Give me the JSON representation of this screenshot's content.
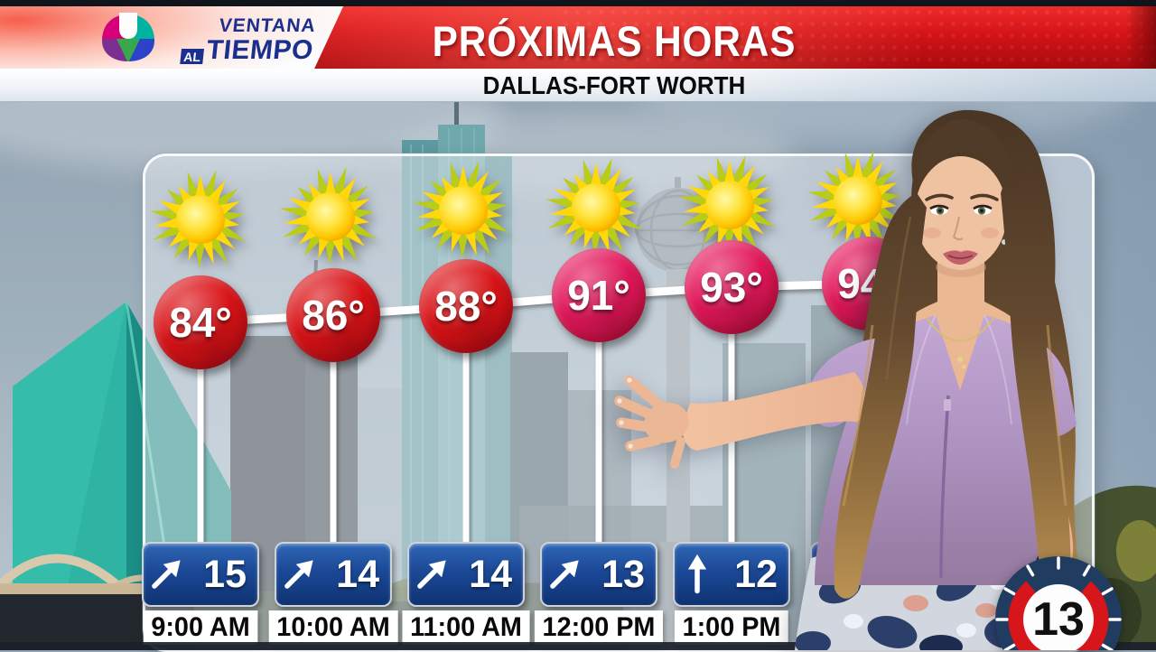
{
  "branding": {
    "network": "univision-logo",
    "show_name_line1": "VENTANA",
    "show_name_al": "AL",
    "show_name_tiempo": "TIEMPO"
  },
  "header": {
    "title": "PRÓXIMAS HORAS",
    "location": "DALLAS-FORT WORTH"
  },
  "countdown": {
    "value": "13"
  },
  "colors": {
    "banner_red": "#d8151b",
    "bubble_red": "#db1317",
    "bubble_crimson": "#e4185c",
    "wind_box_blue": "#1c4795",
    "gauge_navy": "#203c60",
    "gauge_red": "#d7161b",
    "logo_blue": "#1b2f8e",
    "sun_yellow": "#ffd80a",
    "trend_line": "#ffffff"
  },
  "chart_data": {
    "type": "table",
    "title": "PRÓXIMAS HORAS",
    "subtitle": "DALLAS-FORT WORTH",
    "categories": [
      "9:00 AM",
      "10:00 AM",
      "11:00 AM",
      "12:00 PM",
      "1:00 PM",
      ""
    ],
    "series": [
      {
        "name": "Temperature (°F)",
        "values": [
          84,
          86,
          88,
          91,
          93,
          94
        ]
      },
      {
        "name": "Wind (mph)",
        "values": [
          15,
          14,
          14,
          13,
          12,
          null
        ]
      }
    ],
    "hours": [
      {
        "time": "9:00 AM",
        "condition": "sunny",
        "temp": "84°",
        "wind": "15",
        "wind_dir": "NE",
        "bubble_color": "#db1317"
      },
      {
        "time": "10:00 AM",
        "condition": "sunny",
        "temp": "86°",
        "wind": "14",
        "wind_dir": "NE",
        "bubble_color": "#db1317"
      },
      {
        "time": "11:00 AM",
        "condition": "sunny",
        "temp": "88°",
        "wind": "14",
        "wind_dir": "NE",
        "bubble_color": "#db1317"
      },
      {
        "time": "12:00 PM",
        "condition": "sunny",
        "temp": "91°",
        "wind": "13",
        "wind_dir": "NE",
        "bubble_color": "#e4185c"
      },
      {
        "time": "1:00 PM",
        "condition": "sunny",
        "temp": "93°",
        "wind": "12",
        "wind_dir": "N",
        "bubble_color": "#e4185c"
      },
      {
        "time": null,
        "condition": "sunny",
        "temp": "94°",
        "wind": null,
        "wind_dir": null,
        "bubble_color": "#e4185c"
      }
    ]
  }
}
